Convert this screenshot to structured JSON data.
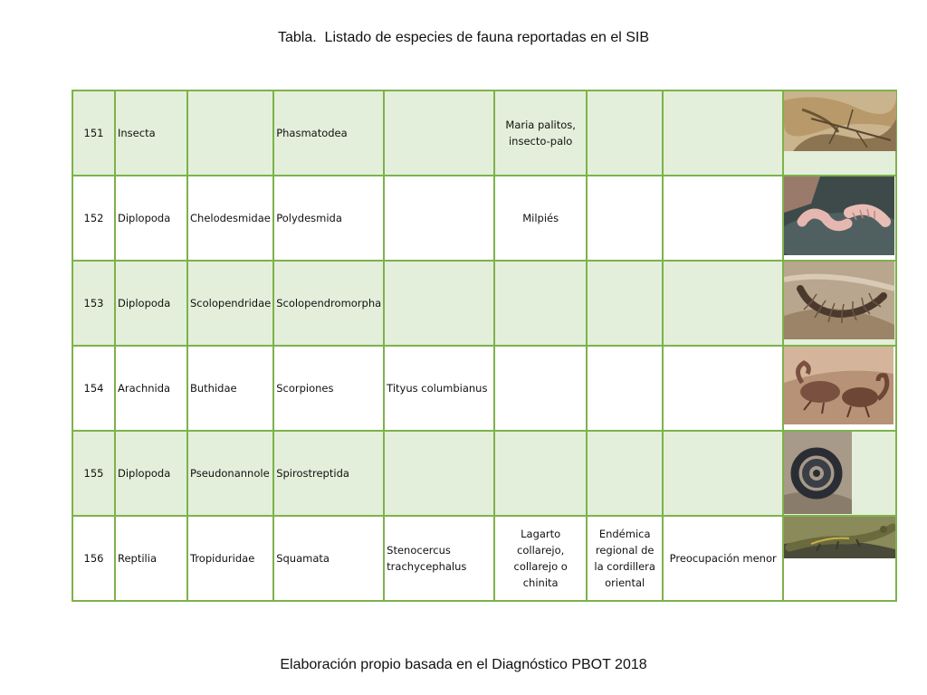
{
  "document": {
    "title": "Tabla.  Listado de especies de fauna reportadas en el SIB",
    "caption": "Elaboración propio basada en el Diagnóstico PBOT 2018"
  },
  "colors": {
    "border": "#7db24a",
    "shaded_row": "#e3efda"
  },
  "rows": [
    {
      "num": "151",
      "clase": "Insecta",
      "familia": "",
      "orden": "Phasmatodea",
      "especie": "",
      "nombre_comun": "Maria palitos, insecto-palo",
      "endemismo": "",
      "categoria": "",
      "photo": "insecto-palo-photo"
    },
    {
      "num": "152",
      "clase": "Diplopoda",
      "familia": "Chelodesmidae",
      "orden": "Polydesmida",
      "especie": "",
      "nombre_comun": "Milpiés",
      "endemismo": "",
      "categoria": "",
      "photo": "milpies-photo"
    },
    {
      "num": "153",
      "clase": "Diplopoda",
      "familia": "Scolopendridae",
      "orden": "Scolopendromorpha",
      "especie": "",
      "nombre_comun": "",
      "endemismo": "",
      "categoria": "",
      "photo": "ciempies-photo"
    },
    {
      "num": "154",
      "clase": "Arachnida",
      "familia": "Buthidae",
      "orden": "Scorpiones",
      "especie": "Tityus columbianus",
      "nombre_comun": "",
      "endemismo": "",
      "categoria": "",
      "photo": "escorpion-photo"
    },
    {
      "num": "155",
      "clase": "Diplopoda",
      "familia": "Pseudonannole",
      "orden": "Spirostreptida",
      "especie": "",
      "nombre_comun": "",
      "endemismo": "",
      "categoria": "",
      "photo": "milpies-enrollado-photo"
    },
    {
      "num": "156",
      "clase": "Reptilia",
      "familia": "Tropiduridae",
      "orden": "Squamata",
      "especie": "Stenocercus trachycephalus",
      "nombre_comun": "Lagarto collarejo, collarejo o chinita",
      "endemismo": "Endémica regional de la cordillera oriental",
      "categoria": "Preocupación menor",
      "photo": "lagarto-photo"
    }
  ]
}
